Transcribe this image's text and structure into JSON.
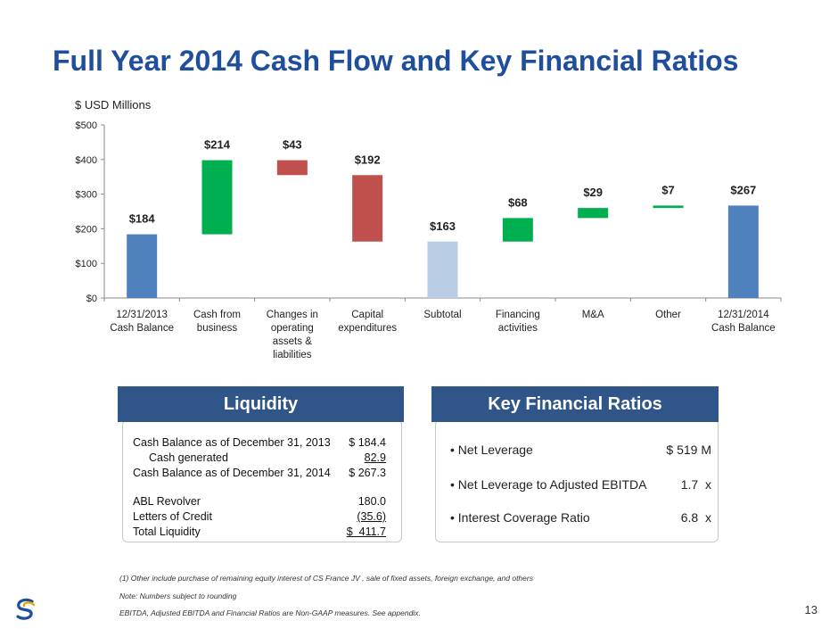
{
  "page": {
    "title": "Full Year 2014 Cash Flow and Key Financial Ratios",
    "units": "$ USD Millions",
    "page_number": "13"
  },
  "chart_data": {
    "type": "bar",
    "subtype": "waterfall",
    "categories": [
      "12/31/2013\nCash Balance",
      "Cash from\nbusiness",
      "Changes in\noperating\nassets &\nliabilities",
      "Capital\nexpenditures",
      "Subtotal",
      "Financing\nactivities",
      "M&A",
      "Other",
      "12/31/2014\nCash Balance"
    ],
    "bars": [
      {
        "start": 0,
        "end": 184,
        "label": "$184",
        "color": "#4f81bd"
      },
      {
        "start": 184,
        "end": 398,
        "label": "$214",
        "color": "#00b050"
      },
      {
        "start": 355,
        "end": 398,
        "label": "$43",
        "color": "#c0504d"
      },
      {
        "start": 163,
        "end": 355,
        "label": "$192",
        "color": "#c0504d"
      },
      {
        "start": 0,
        "end": 163,
        "label": "$163",
        "color": "#b9cde5"
      },
      {
        "start": 163,
        "end": 231,
        "label": "$68",
        "color": "#00b050"
      },
      {
        "start": 231,
        "end": 260,
        "label": "$29",
        "color": "#00b050"
      },
      {
        "start": 260,
        "end": 267,
        "label": "$7",
        "color": "#00b050"
      },
      {
        "start": 0,
        "end": 267,
        "label": "$267",
        "color": "#4f81bd"
      }
    ],
    "yticks": [
      "$0",
      "$100",
      "$200",
      "$300",
      "$400",
      "$500"
    ],
    "ylim": [
      0,
      500
    ],
    "grid": false
  },
  "liquidity": {
    "header": "Liquidity",
    "rows": [
      {
        "label": "Cash Balance as of December 31, 2013",
        "value": "$ 184.4",
        "indent": false,
        "underline": false
      },
      {
        "label": "Cash generated",
        "value": "82.9",
        "indent": true,
        "underline": true
      },
      {
        "label": "Cash Balance as of December 31, 2014",
        "value": "$ 267.3",
        "indent": false,
        "underline": false
      },
      {
        "label": "ABL Revolver",
        "value": "180.0",
        "indent": false,
        "underline": false
      },
      {
        "label": "Letters of Credit",
        "value": "(35.6)",
        "indent": false,
        "underline": true
      },
      {
        "label": "Total Liquidity",
        "value": "$  411.7",
        "indent": false,
        "underline": true
      }
    ]
  },
  "ratios": {
    "header": "Key Financial Ratios",
    "rows": [
      {
        "label": "• Net Leverage",
        "value": "$ 519 M"
      },
      {
        "label": "• Net Leverage to Adjusted EBITDA",
        "value": "1.7  x"
      },
      {
        "label": "• Interest Coverage Ratio",
        "value": "6.8  x"
      }
    ]
  },
  "notes": [
    "(1) Other include purchase of remaining equity interest of CS France JV , sale of fixed assets, foreign exchange, and others",
    "Note: Numbers subject to rounding",
    "EBITDA, Adjusted EBITDA and Financial Ratios are Non-GAAP measures. See appendix."
  ],
  "colors": {
    "title": "#1f4e9c",
    "header_bg": "#2f5589",
    "increase": "#00b050",
    "decrease": "#c0504d",
    "balance": "#4f81bd",
    "subtotal": "#b9cde5"
  }
}
